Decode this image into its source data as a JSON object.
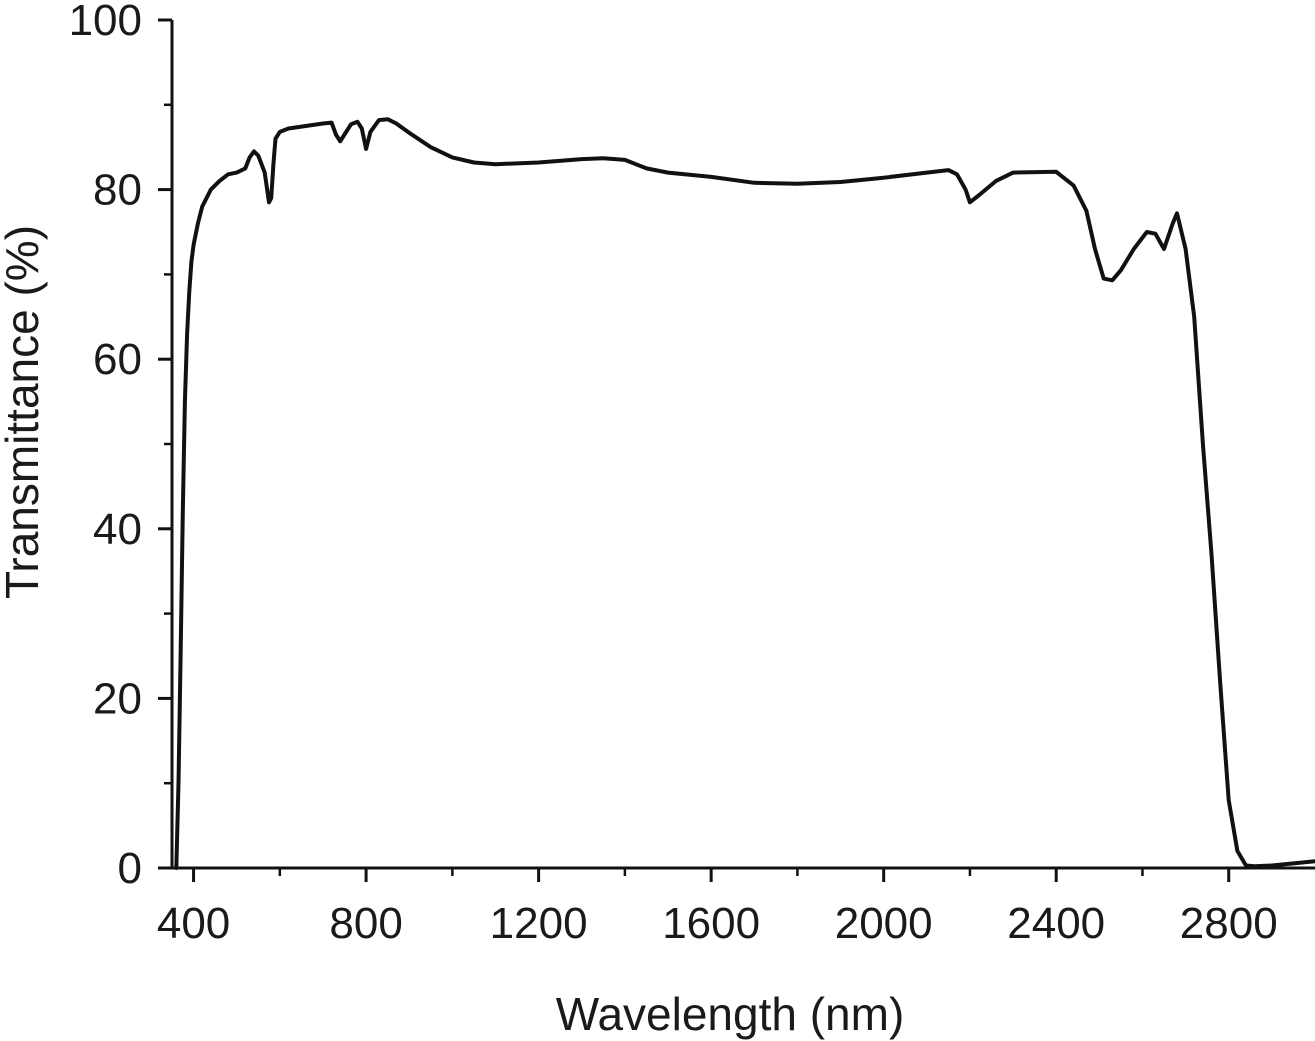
{
  "chart_data": {
    "type": "line",
    "title": "",
    "xlabel": "Wavelength (nm)",
    "ylabel": "Transmittance (%)",
    "xlim": [
      350,
      3000
    ],
    "ylim": [
      0,
      100
    ],
    "x_ticks": [
      400,
      800,
      1200,
      1600,
      2000,
      2400,
      2800
    ],
    "x_tick_labels": [
      "400",
      "800",
      "1200",
      "1600",
      "2000",
      "2400",
      "2800"
    ],
    "x_minor_ticks": [
      600,
      1000,
      1400,
      1800,
      2200,
      2600
    ],
    "y_ticks": [
      0,
      20,
      40,
      60,
      80,
      100
    ],
    "y_tick_labels": [
      "0",
      "20",
      "40",
      "60",
      "80",
      "100"
    ],
    "y_minor_ticks": [
      10,
      30,
      50,
      70,
      90
    ],
    "grid": false,
    "legend": "none",
    "line_color": "#111111",
    "series": [
      {
        "x": [
          360,
          365,
          370,
          375,
          380,
          385,
          390,
          395,
          400,
          410,
          420,
          440,
          460,
          480,
          500,
          520,
          530,
          540,
          550,
          565,
          575,
          580,
          585,
          590,
          600,
          620,
          660,
          700,
          720,
          730,
          740,
          750,
          765,
          780,
          790,
          800,
          810,
          830,
          850,
          870,
          900,
          950,
          1000,
          1050,
          1100,
          1200,
          1300,
          1350,
          1400,
          1450,
          1500,
          1600,
          1700,
          1800,
          1900,
          2000,
          2100,
          2150,
          2170,
          2190,
          2200,
          2220,
          2260,
          2300,
          2400,
          2440,
          2470,
          2490,
          2510,
          2530,
          2550,
          2580,
          2610,
          2630,
          2650,
          2670,
          2680,
          2700,
          2720,
          2740,
          2760,
          2780,
          2800,
          2820,
          2840,
          2860,
          2900,
          3000
        ],
        "y": [
          0,
          10,
          25,
          42,
          55,
          63,
          68,
          71.5,
          73.5,
          76,
          78,
          80,
          81,
          81.8,
          82,
          82.5,
          83.8,
          84.5,
          84,
          82,
          78.5,
          79,
          83,
          86,
          86.8,
          87.2,
          87.5,
          87.8,
          87.9,
          86.5,
          85.7,
          86.5,
          87.7,
          88,
          87.2,
          84.8,
          86.8,
          88.2,
          88.3,
          87.8,
          86.7,
          85,
          83.8,
          83.2,
          83,
          83.2,
          83.6,
          83.7,
          83.5,
          82.5,
          82,
          81.5,
          80.8,
          80.7,
          80.9,
          81.4,
          82,
          82.3,
          81.8,
          80,
          78.5,
          79.3,
          81,
          82,
          82.1,
          80.5,
          77.5,
          73,
          69.5,
          69.3,
          70.5,
          73,
          75,
          74.8,
          73,
          76,
          77.2,
          73,
          65,
          50,
          37,
          22,
          8,
          2,
          0.3,
          0.2,
          0.3,
          0.8
        ]
      }
    ]
  }
}
